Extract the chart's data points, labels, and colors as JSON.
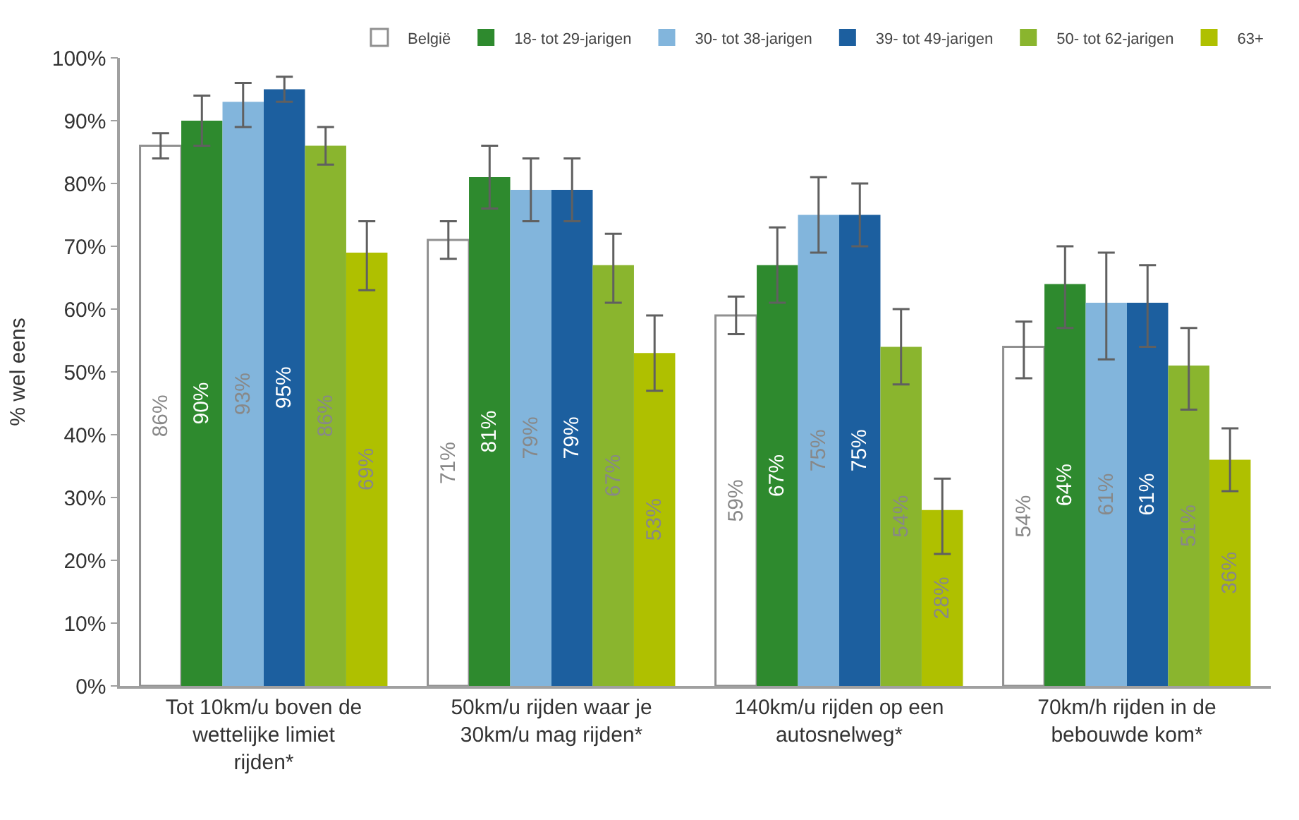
{
  "chart_data": {
    "type": "bar",
    "ylabel": "% wel eens",
    "categories": [
      "Tot 10km/u boven de wettelijke limiet rijden*",
      "50km/u rijden waar je 30km/u mag rijden*",
      "140km/u rijden op een autosnelweg*",
      "70km/h rijden in de bebouwde kom*"
    ],
    "series": [
      {
        "name": "België",
        "color": "#ffffff",
        "values": [
          86,
          71,
          59,
          54
        ],
        "value_labels": [
          "86%",
          "71%",
          "59%",
          "54%"
        ],
        "errors": [
          [
            84,
            88
          ],
          [
            68,
            74
          ],
          [
            56,
            62
          ],
          [
            49,
            58
          ]
        ]
      },
      {
        "name": "18- tot 29-jarigen",
        "color": "#2e8a2e",
        "values": [
          90,
          81,
          67,
          64
        ],
        "value_labels": [
          "90%",
          "81%",
          "67%",
          "64%"
        ],
        "errors": [
          [
            86,
            94
          ],
          [
            76,
            86
          ],
          [
            61,
            73
          ],
          [
            57,
            70
          ]
        ]
      },
      {
        "name": "30- tot 38-jarigen",
        "color": "#82b5dc",
        "values": [
          93,
          79,
          75,
          61
        ],
        "value_labels": [
          "93%",
          "79%",
          "75%",
          "61%"
        ],
        "errors": [
          [
            89,
            96
          ],
          [
            74,
            84
          ],
          [
            69,
            81
          ],
          [
            52,
            69
          ]
        ]
      },
      {
        "name": "39- tot 49-jarigen",
        "color": "#1c5f9f",
        "values": [
          95,
          79,
          75,
          61
        ],
        "value_labels": [
          "95%",
          "79%",
          "75%",
          "61%"
        ],
        "errors": [
          [
            93,
            97
          ],
          [
            74,
            84
          ],
          [
            70,
            80
          ],
          [
            54,
            67
          ]
        ]
      },
      {
        "name": "50- tot 62-jarigen",
        "color": "#8ab52e",
        "values": [
          86,
          67,
          54,
          51
        ],
        "value_labels": [
          "86%",
          "67%",
          "54%",
          "51%"
        ],
        "errors": [
          [
            83,
            89
          ],
          [
            61,
            72
          ],
          [
            48,
            60
          ],
          [
            44,
            57
          ]
        ]
      },
      {
        "name": "63+",
        "color": "#afc000",
        "values": [
          69,
          53,
          28,
          36
        ],
        "value_labels": [
          "69%",
          "53%",
          "28%",
          "36%"
        ],
        "errors": [
          [
            63,
            74
          ],
          [
            47,
            59
          ],
          [
            21,
            33
          ],
          [
            31,
            41
          ]
        ]
      }
    ],
    "ylim": [
      0,
      100
    ],
    "yticks": [
      {
        "value": 0,
        "label": "0%"
      },
      {
        "value": 10,
        "label": "10%"
      },
      {
        "value": 20,
        "label": "20%"
      },
      {
        "value": 30,
        "label": "30%"
      },
      {
        "value": 40,
        "label": "40%"
      },
      {
        "value": 50,
        "label": "50%"
      },
      {
        "value": 60,
        "label": "60%"
      },
      {
        "value": 70,
        "label": "70%"
      },
      {
        "value": 80,
        "label": "80%"
      },
      {
        "value": 90,
        "label": "90%"
      },
      {
        "value": 100,
        "label": "100%"
      }
    ],
    "legend": "top"
  }
}
